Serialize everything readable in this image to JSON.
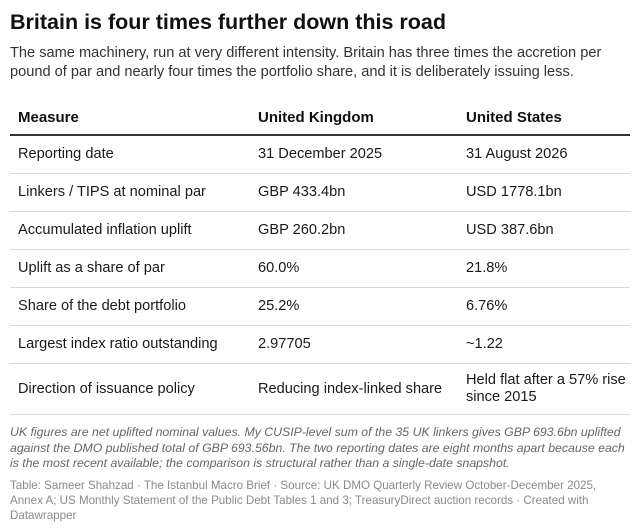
{
  "header": {
    "title": "Britain is four times further down this road",
    "subtitle": "The same machinery, run at very different intensity. Britain has three times the accretion per pound of par and nearly four times the portfolio share, and it is deliberately issuing less."
  },
  "chart_data": {
    "type": "table",
    "columns": [
      "Measure",
      "United Kingdom",
      "United States"
    ],
    "rows": [
      {
        "measure": "Reporting date",
        "uk": "31 December 2025",
        "us": "31 August 2026"
      },
      {
        "measure": "Linkers / TIPS at nominal par",
        "uk": "GBP 433.4bn",
        "us": "USD 1778.1bn"
      },
      {
        "measure": "Accumulated inflation uplift",
        "uk": "GBP 260.2bn",
        "us": "USD 387.6bn"
      },
      {
        "measure": "Uplift as a share of par",
        "uk": "60.0%",
        "us": "21.8%"
      },
      {
        "measure": "Share of the debt portfolio",
        "uk": "25.2%",
        "us": "6.76%"
      },
      {
        "measure": "Largest index ratio outstanding",
        "uk": "2.97705",
        "us": "~1.22"
      },
      {
        "measure": "Direction of issuance policy",
        "uk": "Reducing index-linked share",
        "us": "Held flat after a 57% rise since 2015"
      }
    ]
  },
  "footer": {
    "notes": "UK figures are net uplifted nominal values. My CUSIP-level sum of the 35 UK linkers gives GBP 693.6bn uplifted against the DMO published total of GBP 693.56bn. The two reporting dates are eight months apart because each is the most recent available; the comparison is structural rather than a single-date snapshot.",
    "source": "Table: Sameer Shahzad · The Istanbul Macro Brief · Source: UK DMO Quarterly Review October-December 2025, Annex A; US Monthly Statement of the Public Debt Tables 1 and 3; TreasuryDirect auction records · Created with Datawrapper"
  },
  "colors": {
    "header_rule": "#333333",
    "row_rule": "#d9d9d9",
    "notes_text": "#666666",
    "source_text": "#8a8a8a"
  }
}
